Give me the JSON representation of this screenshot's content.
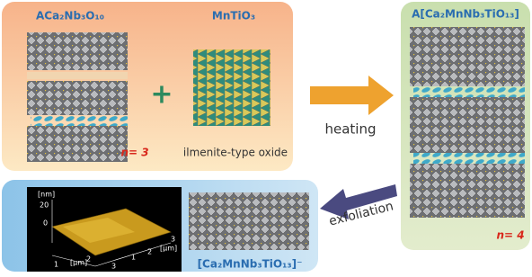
{
  "precursor": {
    "title": "ACa₂Nb₃O₁₀",
    "n_label": "n= 3"
  },
  "oxide": {
    "title": "MnTiO₃",
    "caption": "ilmenite-type oxide"
  },
  "plus": "+",
  "product": {
    "title": "A[Ca₂MnNb₃TiO₁₃]",
    "n_label": "n= 4"
  },
  "heating": "heating",
  "exfoliation": "exfoliation",
  "nanosheet": {
    "title": "[Ca₂MnNb₃TiO₁₃]⁻"
  },
  "afm": {
    "z_unit": "[nm]",
    "z_ticks": [
      "20",
      "0"
    ],
    "x_unit": "[μm]",
    "x_ticks": [
      "1",
      "2",
      "3"
    ],
    "y_unit": "[μm]",
    "y_ticks": [
      "1",
      "2",
      "3"
    ]
  }
}
